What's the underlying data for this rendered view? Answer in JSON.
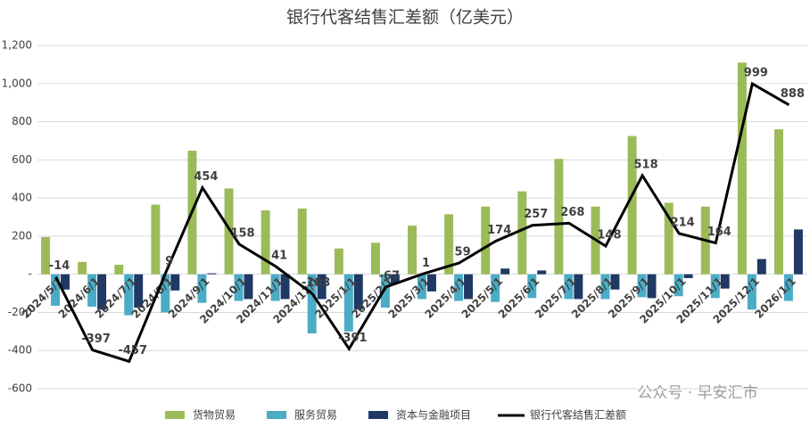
{
  "chart_data": {
    "type": "bar-line",
    "title": "银行代客结售汇差额（亿美元）",
    "watermark": "公众号 · 早安汇市",
    "categories": [
      "2024/5/1",
      "2024/6/1",
      "2024/7/1",
      "2024/8/1",
      "2024/9/1",
      "2024/10/1",
      "2024/11/1",
      "2024/12/1",
      "2025/1/1",
      "2025/2/1",
      "2025/3/1",
      "2025/4/1",
      "2025/5/1",
      "2025/6/1",
      "2025/7/1",
      "2025/8/1",
      "2025/9/1",
      "2025/10/1",
      "2025/11/1",
      "2025/12/1",
      "2026/1/1"
    ],
    "series": [
      {
        "name": "货物贸易",
        "type": "bar",
        "color": "#9bbb59",
        "values": [
          195,
          65,
          50,
          365,
          648,
          450,
          335,
          345,
          135,
          165,
          255,
          315,
          355,
          435,
          605,
          355,
          725,
          375,
          355,
          1110,
          760
        ]
      },
      {
        "name": "服务贸易",
        "type": "bar",
        "color": "#4bacc6",
        "values": [
          -165,
          -170,
          -215,
          -200,
          -150,
          -140,
          -140,
          -310,
          -300,
          -175,
          -130,
          -140,
          -145,
          -125,
          -130,
          -130,
          -120,
          -115,
          -125,
          -185,
          -140
        ]
      },
      {
        "name": "资本与金融项目",
        "type": "bar",
        "color": "#1f3864",
        "values": [
          -80,
          -185,
          -175,
          -85,
          5,
          -130,
          -130,
          -130,
          -185,
          -50,
          -90,
          -130,
          30,
          20,
          -130,
          -80,
          -125,
          -20,
          -75,
          80,
          235
        ]
      },
      {
        "name": "银行代客结售汇差额",
        "type": "line",
        "color": "#000000",
        "values": [
          -14,
          -397,
          -457,
          9,
          454,
          158,
          41,
          -103,
          -391,
          -67,
          1,
          59,
          174,
          257,
          268,
          148,
          518,
          214,
          164,
          999,
          888
        ]
      }
    ],
    "ylim": [
      -600,
      1200
    ],
    "yticks": [
      -600,
      -400,
      -200,
      {
        "value": 0,
        "label": "-"
      },
      200,
      400,
      600,
      800,
      {
        "value": 1000,
        "label": "1,000"
      },
      {
        "value": 1200,
        "label": "1,200"
      }
    ],
    "grid": true,
    "legend": "bottom"
  }
}
